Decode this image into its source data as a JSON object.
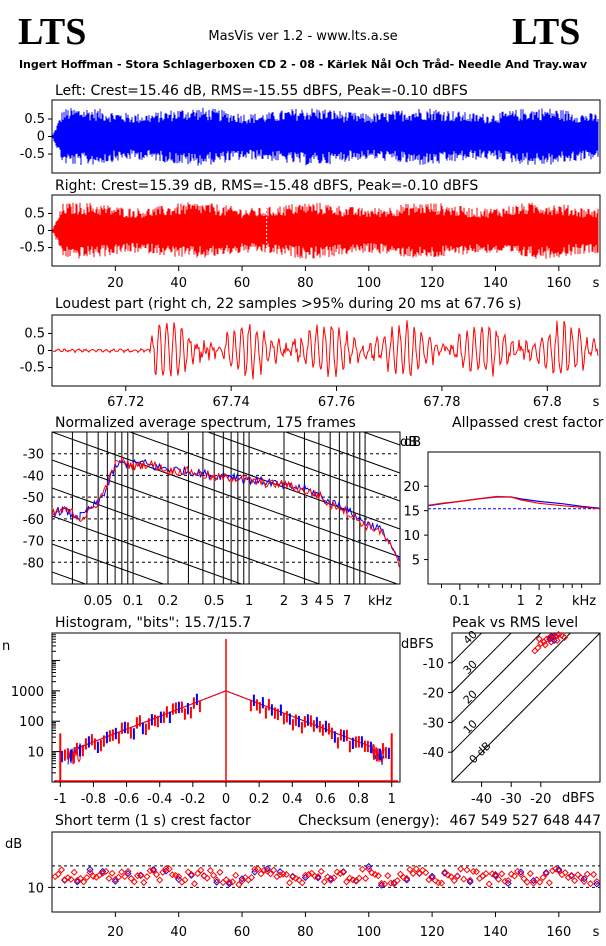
{
  "header": {
    "logo_left": "LTS",
    "logo_right": "LTS",
    "app": "MasVis ver 1.2 - www.lts.a.se",
    "filename": "Ingert Hoffman - Stora Schlagerboxen CD 2 - 08 - Kärlek Nål Och Tråd- Needle And Tray.wav"
  },
  "colors": {
    "left": "#0000ff",
    "right": "#ff0000",
    "axis": "#000000"
  },
  "chart_data": [
    {
      "id": "left_waveform",
      "type": "area",
      "title": "Left: Crest=15.46 dB, RMS=-15.55 dBFS, Peak=-0.10 dBFS",
      "crest_db": 15.46,
      "rms_dbfs": -15.55,
      "peak_dbfs": -0.1,
      "ylim": [
        -1,
        1
      ],
      "yticks": [
        "0.5",
        "0",
        "-0.5"
      ],
      "color": "#0000ff"
    },
    {
      "id": "right_waveform",
      "type": "area",
      "title": "Right: Crest=15.39 dB, RMS=-15.48 dBFS, Peak=-0.10 dBFS",
      "crest_db": 15.39,
      "rms_dbfs": -15.48,
      "peak_dbfs": -0.1,
      "ylim": [
        -1,
        1
      ],
      "yticks": [
        "0.5",
        "0",
        "-0.5"
      ],
      "xlim": [
        0,
        173
      ],
      "xticks": [
        20,
        40,
        60,
        80,
        100,
        120,
        140,
        160
      ],
      "xunit": "s",
      "loudest_marker_s": 67.76,
      "color": "#ff0000"
    },
    {
      "id": "loudest_part",
      "type": "line",
      "title": "Loudest part (right ch, 22 samples >95% during 20 ms at 67.76 s)",
      "samples_over": 22,
      "duration_ms": 20,
      "at_s": 67.76,
      "ylim": [
        -1,
        1
      ],
      "yticks": [
        "0.5",
        "0",
        "-0.5"
      ],
      "xlim": [
        67.706,
        67.81
      ],
      "xticks": [
        "67.72",
        "67.74",
        "67.76",
        "67.78",
        "67.8"
      ],
      "xunit": "s",
      "color": "#ff0000"
    },
    {
      "id": "spectrum",
      "type": "line",
      "title": "Normalized average spectrum, 175 frames",
      "frames": 175,
      "ylabel": "dB",
      "xscale": "log",
      "xlim": [
        0.02,
        20
      ],
      "ylim": [
        -90,
        -20
      ],
      "yticks": [
        -30,
        -40,
        -50,
        -60,
        -70,
        -80
      ],
      "xticks": [
        "0.05",
        "0.1",
        "0.2",
        "0.5",
        "1",
        "2",
        "3",
        "4",
        "5",
        "7"
      ],
      "xticks_values": [
        0.05,
        0.1,
        0.2,
        0.5,
        1,
        2,
        3,
        4,
        5,
        7
      ],
      "xunit": "kHz",
      "series": [
        {
          "name": "Left",
          "color": "#0000ff",
          "x": [
            0.02,
            0.025,
            0.03,
            0.035,
            0.04,
            0.045,
            0.05,
            0.06,
            0.07,
            0.08,
            0.1,
            0.12,
            0.15,
            0.2,
            0.3,
            0.5,
            0.7,
            1,
            1.5,
            2,
            3,
            4,
            5,
            6,
            7,
            8,
            10,
            13,
            16,
            20
          ],
          "y": [
            -57,
            -56,
            -58,
            -59,
            -57,
            -54,
            -53,
            -45,
            -36,
            -34,
            -35,
            -34,
            -36,
            -37,
            -38,
            -40,
            -40,
            -42,
            -43,
            -45,
            -46,
            -49,
            -53,
            -53,
            -56,
            -58,
            -62,
            -64,
            -70,
            -81
          ]
        },
        {
          "name": "Right",
          "color": "#ff0000",
          "x": [
            0.02,
            0.025,
            0.03,
            0.035,
            0.04,
            0.045,
            0.05,
            0.06,
            0.07,
            0.08,
            0.1,
            0.12,
            0.15,
            0.2,
            0.3,
            0.5,
            0.7,
            1,
            1.5,
            2,
            3,
            4,
            5,
            6,
            7,
            8,
            10,
            13,
            16,
            20
          ],
          "y": [
            -58,
            -56,
            -57,
            -60,
            -58,
            -55,
            -52,
            -44,
            -35,
            -33,
            -36,
            -35,
            -35,
            -38,
            -38,
            -41,
            -41,
            -42,
            -44,
            -44,
            -47,
            -49,
            -54,
            -54,
            -57,
            -59,
            -63,
            -65,
            -71,
            -82
          ]
        }
      ]
    },
    {
      "id": "allpassed_crest",
      "type": "line",
      "title": "Allpassed crest factor",
      "ylabel": "dB",
      "xscale": "log",
      "xlim": [
        0.03,
        20
      ],
      "ylim": [
        0,
        27
      ],
      "yticks": [
        20,
        15,
        10,
        5
      ],
      "xticks": [
        "0.1",
        "1",
        "2"
      ],
      "xticks_values": [
        0.1,
        1,
        2
      ],
      "xunit": "kHz",
      "reference_db": 15.4,
      "series": [
        {
          "name": "Left",
          "color": "#0000ff",
          "x": [
            0.03,
            0.05,
            0.1,
            0.2,
            0.4,
            0.7,
            1,
            2,
            5,
            10,
            20
          ],
          "y": [
            16.0,
            16.4,
            16.9,
            17.4,
            17.8,
            17.8,
            17.4,
            16.9,
            16.4,
            15.9,
            15.5
          ]
        },
        {
          "name": "Right",
          "color": "#ff0000",
          "x": [
            0.03,
            0.05,
            0.1,
            0.2,
            0.4,
            0.7,
            1,
            2,
            5,
            10,
            20
          ],
          "y": [
            16.1,
            16.5,
            16.9,
            17.4,
            17.9,
            17.8,
            17.2,
            16.5,
            16.0,
            15.7,
            15.4
          ]
        }
      ]
    },
    {
      "id": "histogram",
      "type": "line",
      "title": "Histogram, \"bits\": 15.7/15.7",
      "bits_left": 15.7,
      "bits_right": 15.7,
      "ylabel": "n",
      "yscale": "log",
      "ylim": [
        1,
        80000
      ],
      "yticks": [
        "1000",
        "100",
        "10"
      ],
      "yticks_values": [
        1000,
        100,
        10
      ],
      "xlim": [
        -1.05,
        1.05
      ],
      "xticks": [
        "-1",
        "-0.8",
        "-0.6",
        "-0.4",
        "-0.2",
        "0",
        "0.2",
        "0.4",
        "0.6",
        "0.8",
        "1"
      ],
      "xticks_values": [
        -1,
        -0.8,
        -0.6,
        -0.4,
        -0.2,
        0,
        0.2,
        0.4,
        0.6,
        0.8,
        1
      ],
      "series": [
        {
          "name": "Left",
          "color": "#0000ff",
          "x": [
            -1,
            -0.95,
            -0.8,
            -0.6,
            -0.4,
            -0.2,
            0,
            0.2,
            0.4,
            0.6,
            0.8,
            0.95,
            1
          ],
          "y": [
            20,
            8,
            12,
            30,
            75,
            220,
            1000,
            220,
            75,
            30,
            12,
            8,
            20
          ]
        },
        {
          "name": "Right",
          "color": "#ff0000",
          "x": [
            -1,
            -0.95,
            -0.8,
            -0.6,
            -0.4,
            -0.2,
            0,
            0.2,
            0.4,
            0.6,
            0.8,
            0.95,
            1
          ],
          "y": [
            25,
            7,
            11,
            28,
            70,
            210,
            1000,
            210,
            70,
            28,
            11,
            7,
            25
          ]
        }
      ]
    },
    {
      "id": "peak_vs_rms",
      "type": "scatter",
      "title": "Peak vs RMS level",
      "ylabel": "dBFS",
      "xlabel": "dBFS",
      "xlim": [
        -50,
        0
      ],
      "ylim": [
        -50,
        0
      ],
      "xticks": [
        -40,
        -30,
        -20
      ],
      "yticks": [
        -10,
        -20,
        -30,
        -40
      ],
      "crest_lines": [
        "40",
        "30",
        "20",
        "10",
        "0 dB"
      ],
      "series": [
        {
          "name": "Left",
          "color": "#0000ff",
          "x": [
            -17,
            -16,
            -15,
            -14,
            -16.5,
            -15.5
          ],
          "y": [
            -2,
            -1.5,
            -1,
            -0.5,
            -1.2,
            -2.5
          ]
        },
        {
          "name": "Right",
          "color": "#ff0000",
          "x": [
            -21,
            -20,
            -19,
            -18,
            -17,
            -16,
            -15,
            -14,
            -13,
            -12,
            -18.5,
            -16.5,
            -14.5,
            -20.5,
            -22
          ],
          "y": [
            -5,
            -3.5,
            -3,
            -2,
            -1.5,
            -1,
            -1.2,
            -0.6,
            -0.8,
            -1.5,
            -4,
            -3,
            -2.5,
            -2,
            -6
          ]
        }
      ]
    },
    {
      "id": "short_term_crest",
      "type": "scatter",
      "title": "Short term (1 s) crest factor",
      "checksum_label": "Checksum (energy):",
      "checksum_value": "467 549 527 648 447",
      "ylabel": "dB",
      "ylim": [
        2,
        28
      ],
      "yticks": [
        "10"
      ],
      "yticks_values": [
        10
      ],
      "ref_lines": [
        10,
        17
      ],
      "xlim": [
        0,
        173
      ],
      "xticks": [
        20,
        40,
        60,
        80,
        100,
        120,
        140,
        160
      ],
      "xunit": "s",
      "series": [
        {
          "name": "Left",
          "color": "#0000ff",
          "x": [],
          "y": []
        },
        {
          "name": "Right",
          "color": "#ff0000",
          "x": [],
          "y": []
        }
      ]
    }
  ]
}
